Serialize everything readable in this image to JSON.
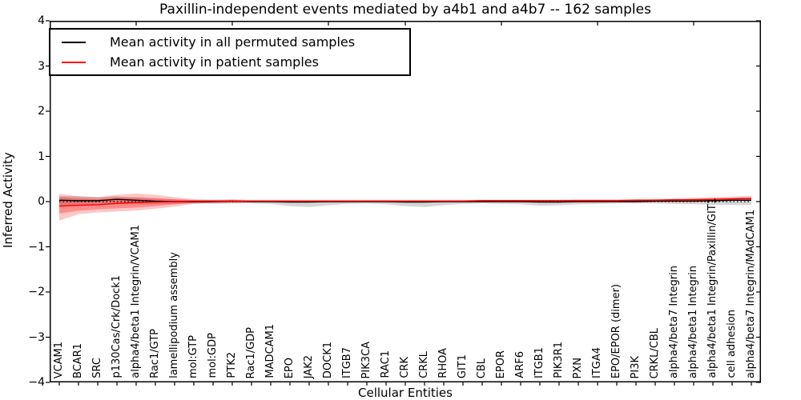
{
  "chart_data": {
    "type": "line",
    "title": "Paxillin-independent events mediated by a4b1 and a4b7 -- 162 samples",
    "xlabel": "Cellular Entities",
    "ylabel": "Inferred Activity",
    "ylim": [
      -4,
      4
    ],
    "ytick_values": [
      4,
      3,
      2,
      1,
      0,
      -1,
      -2,
      -3,
      -4
    ],
    "ytick_labels": [
      "4",
      "3",
      "2",
      "1",
      "0",
      "−1",
      "−2",
      "−3",
      "−4"
    ],
    "grid": false,
    "legend_position": "upper left",
    "zero_line": {
      "style": "dotted",
      "color": "#000000",
      "y": 0
    },
    "categories": [
      "VCAM1",
      "BCAR1",
      "SRC",
      "p130Cas/Crk/Dock1",
      "alpha4/beta1 Integrin/VCAM1",
      "Rac1/GTP",
      "lamellipodium assembly",
      "mol:GTP",
      "mol:GDP",
      "PTK2",
      "Rac1/GDP",
      "MADCAM1",
      "EPO",
      "JAK2",
      "DOCK1",
      "ITGB7",
      "PIK3CA",
      "RAC1",
      "CRK",
      "CRKL",
      "RHOA",
      "GIT1",
      "CBL",
      "EPOR",
      "ARF6",
      "ITGB1",
      "PIK3R1",
      "PXN",
      "ITGA4",
      "EPO/EPOR (dimer)",
      "PI3K",
      "CRKL/CBL",
      "alpha4/beta7 Integrin",
      "alpha4/beta1 Integrin",
      "alpha4/beta1 Integrin/Paxillin/GIT1",
      "cell adhesion",
      "alpha4/beta7 Integrin/MAdCAM1"
    ],
    "series": [
      {
        "name": "Mean activity in all permuted samples",
        "color": "#000000",
        "values": [
          0.03,
          0.02,
          0.02,
          0.05,
          0.03,
          0.01,
          0,
          0,
          0,
          0.01,
          0,
          0,
          -0.01,
          -0.01,
          0,
          0,
          0,
          0,
          -0.01,
          -0.01,
          0,
          0,
          0,
          0,
          0,
          -0.01,
          -0.01,
          0,
          0,
          0,
          0,
          0.01,
          0.01,
          0.01,
          0.02,
          0.03,
          0.03
        ]
      },
      {
        "name": "Mean activity in patient samples",
        "color": "#ff0000",
        "values": [
          -0.1,
          -0.08,
          -0.07,
          -0.04,
          -0.02,
          -0.01,
          0,
          0.01,
          0.01,
          0.01,
          0.01,
          0.01,
          0.01,
          0.01,
          0.01,
          0.01,
          0.01,
          0.01,
          0.01,
          0.01,
          0.01,
          0.01,
          0.02,
          0.02,
          0.02,
          0.02,
          0.02,
          0.02,
          0.02,
          0.02,
          0.03,
          0.03,
          0.04,
          0.04,
          0.05,
          0.06,
          0.07
        ]
      }
    ],
    "bands": [
      {
        "name": "permuted-sample-range",
        "color": "#888888",
        "opacity": 0.35,
        "hi": [
          0.12,
          0.12,
          0.1,
          0.12,
          0.08,
          0.06,
          0.05,
          0.04,
          0.04,
          0.05,
          0.04,
          0.04,
          0.04,
          0.04,
          0.04,
          0.04,
          0.04,
          0.04,
          0.04,
          0.04,
          0.04,
          0.04,
          0.04,
          0.04,
          0.04,
          0.04,
          0.04,
          0.04,
          0.04,
          0.04,
          0.04,
          0.05,
          0.05,
          0.06,
          0.06,
          0.07,
          0.08
        ],
        "lo": [
          -0.1,
          -0.07,
          -0.06,
          -0.05,
          -0.06,
          -0.06,
          -0.05,
          -0.04,
          -0.05,
          -0.04,
          -0.04,
          -0.05,
          -0.1,
          -0.12,
          -0.08,
          -0.05,
          -0.04,
          -0.06,
          -0.1,
          -0.12,
          -0.08,
          -0.05,
          -0.04,
          -0.05,
          -0.06,
          -0.09,
          -0.08,
          -0.06,
          -0.05,
          -0.04,
          -0.04,
          -0.04,
          -0.05,
          -0.06,
          -0.07,
          -0.07,
          -0.07
        ]
      },
      {
        "name": "patient-sample-range-outer",
        "color": "#ff0000",
        "opacity": 0.22,
        "hi": [
          0.17,
          0.12,
          0.1,
          0.15,
          0.18,
          0.15,
          0.1,
          0.05,
          0.04,
          0.04,
          0.03,
          0.03,
          0.03,
          0.03,
          0.03,
          0.03,
          0.03,
          0.03,
          0.03,
          0.03,
          0.03,
          0.03,
          0.04,
          0.04,
          0.04,
          0.04,
          0.04,
          0.05,
          0.05,
          0.05,
          0.06,
          0.06,
          0.07,
          0.08,
          0.1,
          0.11,
          0.13
        ],
        "lo": [
          -0.42,
          -0.28,
          -0.24,
          -0.22,
          -0.2,
          -0.16,
          -0.11,
          -0.05,
          -0.03,
          -0.03,
          -0.02,
          -0.02,
          -0.02,
          -0.02,
          -0.02,
          -0.02,
          -0.02,
          -0.02,
          -0.02,
          -0.02,
          -0.02,
          -0.02,
          -0.01,
          -0.01,
          -0.01,
          -0.01,
          0,
          0,
          0,
          0,
          0,
          0,
          0.01,
          0.01,
          0.01,
          0.02,
          0.02
        ]
      },
      {
        "name": "patient-sample-range-inner",
        "color": "#ff0000",
        "opacity": 0.3,
        "hi": [
          0.1,
          0.07,
          0.06,
          0.09,
          0.1,
          0.08,
          0.05,
          0.03,
          0.03,
          0.03,
          0.02,
          0.02,
          0.02,
          0.02,
          0.02,
          0.02,
          0.02,
          0.02,
          0.02,
          0.02,
          0.02,
          0.02,
          0.03,
          0.03,
          0.03,
          0.03,
          0.03,
          0.03,
          0.03,
          0.03,
          0.04,
          0.04,
          0.05,
          0.06,
          0.07,
          0.08,
          0.09
        ],
        "lo": [
          -0.26,
          -0.2,
          -0.17,
          -0.15,
          -0.13,
          -0.1,
          -0.06,
          -0.03,
          -0.02,
          -0.02,
          -0.01,
          -0.01,
          -0.01,
          -0.01,
          -0.01,
          -0.01,
          -0.01,
          -0.01,
          -0.01,
          -0.01,
          -0.01,
          -0.01,
          0,
          0,
          0,
          0,
          0,
          0,
          0,
          0.01,
          0.01,
          0.01,
          0.01,
          0.02,
          0.02,
          0.03,
          0.04
        ]
      }
    ]
  }
}
